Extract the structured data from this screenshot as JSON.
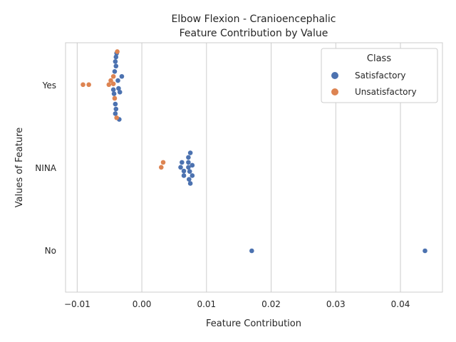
{
  "chart_data": {
    "type": "scatter",
    "title": [
      "Elbow Flexion - Cranioencephalic",
      "Feature Contribution by Value"
    ],
    "xlabel": "Feature Contribution",
    "ylabel": "Values of Feature",
    "categories": [
      "Yes",
      "NINA",
      "No"
    ],
    "xlim": [
      -0.0118,
      0.0465
    ],
    "xticks": [
      -0.01,
      0.0,
      0.01,
      0.02,
      0.03,
      0.04
    ],
    "xtick_labels": [
      "−0.01",
      "0.00",
      "0.01",
      "0.02",
      "0.03",
      "0.04"
    ],
    "grid": true,
    "legend": {
      "title": "Class",
      "position": "top-right"
    },
    "series": [
      {
        "name": "Satisfactory",
        "color": "#4c72b0",
        "points": [
          {
            "category": "Yes",
            "x": -0.0039,
            "offset": 0.39
          },
          {
            "category": "Yes",
            "x": -0.004,
            "offset": 0.345
          },
          {
            "category": "Yes",
            "x": -0.0041,
            "offset": 0.29
          },
          {
            "category": "Yes",
            "x": -0.004,
            "offset": 0.235
          },
          {
            "category": "Yes",
            "x": -0.0042,
            "offset": 0.17
          },
          {
            "category": "Yes",
            "x": -0.0031,
            "offset": 0.11
          },
          {
            "category": "Yes",
            "x": -0.0037,
            "offset": 0.06
          },
          {
            "category": "Yes",
            "x": -0.0036,
            "offset": -0.035
          },
          {
            "category": "Yes",
            "x": -0.0044,
            "offset": -0.05
          },
          {
            "category": "Yes",
            "x": -0.0034,
            "offset": -0.08
          },
          {
            "category": "Yes",
            "x": -0.0043,
            "offset": -0.1
          },
          {
            "category": "Yes",
            "x": -0.0041,
            "offset": -0.225
          },
          {
            "category": "Yes",
            "x": -0.004,
            "offset": -0.285
          },
          {
            "category": "Yes",
            "x": -0.0041,
            "offset": -0.34
          },
          {
            "category": "Yes",
            "x": -0.0035,
            "offset": -0.41
          },
          {
            "category": "NINA",
            "x": 0.0075,
            "offset": 0.185
          },
          {
            "category": "NINA",
            "x": 0.0072,
            "offset": 0.13
          },
          {
            "category": "NINA",
            "x": 0.0062,
            "offset": 0.07
          },
          {
            "category": "NINA",
            "x": 0.0072,
            "offset": 0.07
          },
          {
            "category": "NINA",
            "x": 0.0078,
            "offset": 0.035
          },
          {
            "category": "NINA",
            "x": 0.006,
            "offset": 0.01
          },
          {
            "category": "NINA",
            "x": 0.0072,
            "offset": 0.01
          },
          {
            "category": "NINA",
            "x": 0.0065,
            "offset": -0.035
          },
          {
            "category": "NINA",
            "x": 0.0074,
            "offset": -0.04
          },
          {
            "category": "NINA",
            "x": 0.0065,
            "offset": -0.09
          },
          {
            "category": "NINA",
            "x": 0.0078,
            "offset": -0.09
          },
          {
            "category": "NINA",
            "x": 0.0073,
            "offset": -0.135
          },
          {
            "category": "NINA",
            "x": 0.0075,
            "offset": -0.185
          },
          {
            "category": "No",
            "x": 0.017,
            "offset": 0.0
          },
          {
            "category": "No",
            "x": 0.0438,
            "offset": 0.0
          }
        ]
      },
      {
        "name": "Unsatisfactory",
        "color": "#dd8452",
        "points": [
          {
            "category": "Yes",
            "x": -0.0038,
            "offset": 0.41
          },
          {
            "category": "Yes",
            "x": -0.0044,
            "offset": 0.11
          },
          {
            "category": "Yes",
            "x": -0.0048,
            "offset": 0.06
          },
          {
            "category": "Yes",
            "x": -0.0091,
            "offset": 0.01
          },
          {
            "category": "Yes",
            "x": -0.0082,
            "offset": 0.01
          },
          {
            "category": "Yes",
            "x": -0.0051,
            "offset": 0.01
          },
          {
            "category": "Yes",
            "x": -0.0044,
            "offset": 0.02
          },
          {
            "category": "Yes",
            "x": -0.0042,
            "offset": -0.155
          },
          {
            "category": "Yes",
            "x": -0.0039,
            "offset": -0.39
          },
          {
            "category": "NINA",
            "x": 0.0033,
            "offset": 0.07
          },
          {
            "category": "NINA",
            "x": 0.003,
            "offset": 0.01
          }
        ]
      }
    ]
  }
}
